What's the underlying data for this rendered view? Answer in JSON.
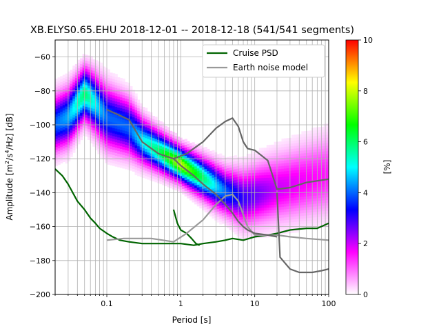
{
  "chart_data": {
    "type": "heatmap",
    "title": "XB.ELYS0.65.EHU   2018-12-01 -- 2018-12-18  (541/541 segments)",
    "xlabel": "Period [s]",
    "ylabel_main": "Amplitude [m",
    "ylabel_sup1": "2",
    "ylabel_mid": "/s",
    "ylabel_sup2": "4",
    "ylabel_end": "/Hz] [dB]",
    "x_scale": "log",
    "xlim": [
      0.02,
      100
    ],
    "ylim": [
      -200,
      -50
    ],
    "x_ticks": [
      {
        "value": 0.1,
        "label": "0.1"
      },
      {
        "value": 1,
        "label": "1"
      },
      {
        "value": 10,
        "label": "10"
      },
      {
        "value": 100,
        "label": "100"
      }
    ],
    "y_ticks": [
      {
        "value": -60,
        "label": "−60"
      },
      {
        "value": -80,
        "label": "−80"
      },
      {
        "value": -100,
        "label": "−100"
      },
      {
        "value": -120,
        "label": "−120"
      },
      {
        "value": -140,
        "label": "−140"
      },
      {
        "value": -160,
        "label": "−160"
      },
      {
        "value": -180,
        "label": "−180"
      },
      {
        "value": -200,
        "label": "−200"
      }
    ],
    "grid": true,
    "legend": {
      "placement": "top-right",
      "entries": [
        {
          "label": "Cruise PSD",
          "color": "#006400"
        },
        {
          "label": "Earth noise model",
          "color": "#999999"
        }
      ]
    },
    "colorbar": {
      "label": "[%]",
      "range": [
        0,
        10
      ],
      "ticks": [
        {
          "value": 0,
          "label": "0"
        },
        {
          "value": 2,
          "label": "2"
        },
        {
          "value": 4,
          "label": "4"
        },
        {
          "value": 6,
          "label": "6"
        },
        {
          "value": 8,
          "label": "8"
        },
        {
          "value": 10,
          "label": "10"
        }
      ],
      "colormap": [
        "#ffffff",
        "#ff00ff",
        "#0000ff",
        "#00ffff",
        "#00ff00",
        "#ffff00",
        "#ff0000"
      ]
    },
    "density_ridge": [
      {
        "x": 0.02,
        "mode": -100,
        "width": 10,
        "peak": 4
      },
      {
        "x": 0.03,
        "mode": -96,
        "width": 10,
        "peak": 4.5
      },
      {
        "x": 0.05,
        "mode": -82,
        "width": 9,
        "peak": 6
      },
      {
        "x": 0.07,
        "mode": -88,
        "width": 10,
        "peak": 5
      },
      {
        "x": 0.1,
        "mode": -96,
        "width": 11,
        "peak": 4
      },
      {
        "x": 0.2,
        "mode": -102,
        "width": 10,
        "peak": 4
      },
      {
        "x": 0.3,
        "mode": -110,
        "width": 8,
        "peak": 5
      },
      {
        "x": 0.5,
        "mode": -116,
        "width": 7,
        "peak": 6
      },
      {
        "x": 1,
        "mode": -124,
        "width": 6,
        "peak": 8
      },
      {
        "x": 2,
        "mode": -132,
        "width": 7,
        "peak": 6
      },
      {
        "x": 4,
        "mode": -140,
        "width": 8,
        "peak": 4
      },
      {
        "x": 7,
        "mode": -144,
        "width": 10,
        "peak": 3
      },
      {
        "x": 20,
        "mode": -138,
        "width": 12,
        "peak": 2
      },
      {
        "x": 100,
        "mode": -130,
        "width": 14,
        "peak": 1.5
      }
    ],
    "series": [
      {
        "name": "Cruise PSD",
        "color": "#006400",
        "points": [
          [
            0.02,
            -126
          ],
          [
            0.025,
            -130
          ],
          [
            0.03,
            -135
          ],
          [
            0.04,
            -145
          ],
          [
            0.05,
            -150
          ],
          [
            0.06,
            -155
          ],
          [
            0.07,
            -158
          ],
          [
            0.08,
            -161
          ],
          [
            0.1,
            -164
          ],
          [
            0.12,
            -166
          ],
          [
            0.15,
            -168
          ],
          [
            0.2,
            -169
          ],
          [
            0.3,
            -170
          ],
          [
            0.5,
            -170
          ],
          [
            0.8,
            -170
          ],
          [
            1.0,
            -170
          ],
          [
            1.5,
            -171
          ],
          [
            2.0,
            -170
          ],
          [
            3.0,
            -169
          ],
          [
            4.0,
            -168
          ],
          [
            5.0,
            -167
          ],
          [
            7.0,
            -168
          ],
          [
            10.0,
            -166
          ],
          [
            15.0,
            -165
          ],
          [
            20.0,
            -164
          ],
          [
            30.0,
            -162
          ],
          [
            50.0,
            -161
          ],
          [
            70.0,
            -161
          ],
          [
            100.0,
            -158
          ]
        ]
      },
      {
        "name": "Cruise PSD",
        "color": "#006400",
        "points": [
          [
            0.8,
            -150
          ],
          [
            0.9,
            -158
          ],
          [
            1.0,
            -162
          ],
          [
            1.2,
            -164
          ],
          [
            1.4,
            -167
          ],
          [
            1.6,
            -170
          ],
          [
            1.8,
            -171
          ]
        ]
      },
      {
        "name": "Earth noise model",
        "color": "#999999",
        "points": [
          [
            0.1,
            -168
          ],
          [
            0.17,
            -167
          ],
          [
            0.4,
            -167
          ],
          [
            0.8,
            -169
          ],
          [
            1.2,
            -164
          ],
          [
            2.0,
            -156
          ],
          [
            3.0,
            -147
          ],
          [
            4.0,
            -142
          ],
          [
            5.0,
            -141
          ],
          [
            6.0,
            -145
          ],
          [
            7.0,
            -153
          ],
          [
            8.0,
            -160
          ],
          [
            10.0,
            -165
          ],
          [
            15.0,
            -165
          ],
          [
            20.0,
            -165
          ],
          [
            30.0,
            -166
          ],
          [
            50.0,
            -167
          ],
          [
            100.0,
            -168
          ]
        ]
      },
      {
        "name": "Earth noise model",
        "color": "#666666",
        "points": [
          [
            0.1,
            -91
          ],
          [
            0.2,
            -97
          ],
          [
            0.3,
            -110
          ],
          [
            0.5,
            -117
          ],
          [
            0.8,
            -120
          ],
          [
            1.0,
            -124
          ],
          [
            1.5,
            -130
          ],
          [
            2.0,
            -135
          ],
          [
            3.0,
            -141
          ],
          [
            4.0,
            -147
          ],
          [
            5.0,
            -152
          ],
          [
            6.0,
            -157
          ],
          [
            7.0,
            -160
          ],
          [
            8.0,
            -162
          ],
          [
            10.0,
            -164
          ],
          [
            15.0,
            -165
          ],
          [
            20.0,
            -166
          ]
        ]
      },
      {
        "name": "Earth noise model",
        "color": "#666666",
        "points": [
          [
            0.8,
            -120
          ],
          [
            1.2,
            -117
          ],
          [
            2.0,
            -110
          ],
          [
            3.0,
            -102
          ],
          [
            4.0,
            -98
          ],
          [
            5.0,
            -96
          ],
          [
            6.0,
            -101
          ],
          [
            7.0,
            -110
          ],
          [
            8.0,
            -114
          ],
          [
            10.0,
            -115
          ],
          [
            15.0,
            -121
          ],
          [
            20.0,
            -138
          ],
          [
            30.0,
            -137
          ],
          [
            50.0,
            -134
          ],
          [
            100.0,
            -132
          ]
        ]
      },
      {
        "name": "Earth noise model",
        "color": "#666666",
        "points": [
          [
            20.0,
            -140
          ],
          [
            22.0,
            -178
          ],
          [
            30.0,
            -185
          ],
          [
            40.0,
            -187
          ],
          [
            60.0,
            -187
          ],
          [
            80.0,
            -186
          ],
          [
            100.0,
            -185
          ]
        ]
      }
    ]
  }
}
